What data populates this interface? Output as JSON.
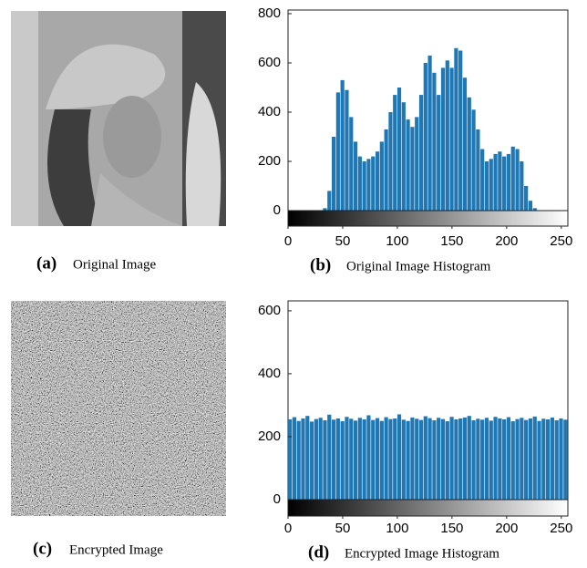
{
  "images": [
    {
      "label": "(a)",
      "caption": "Original Image"
    },
    {
      "label": "(c)",
      "caption": "Encrypted Image"
    }
  ],
  "chart_data": [
    {
      "type": "histogram",
      "label": "(b)",
      "title": "Original Image Histogram",
      "color": "#1f77b4",
      "bins": [
        0,
        4,
        8,
        12,
        16,
        20,
        24,
        28,
        32,
        36,
        40,
        44,
        48,
        52,
        56,
        60,
        64,
        68,
        72,
        76,
        80,
        84,
        88,
        92,
        96,
        100,
        104,
        108,
        112,
        116,
        120,
        124,
        128,
        132,
        136,
        140,
        144,
        148,
        152,
        156,
        160,
        164,
        168,
        172,
        176,
        180,
        184,
        188,
        192,
        196,
        200,
        204,
        208,
        212,
        216,
        220,
        224,
        228,
        232,
        236,
        240,
        244,
        248,
        252,
        256
      ],
      "values": [
        0,
        0,
        0,
        0,
        0,
        0,
        0,
        0,
        10,
        80,
        300,
        480,
        530,
        490,
        380,
        280,
        220,
        200,
        210,
        220,
        240,
        280,
        330,
        400,
        470,
        500,
        440,
        370,
        340,
        380,
        470,
        600,
        630,
        560,
        470,
        580,
        610,
        580,
        660,
        650,
        540,
        460,
        410,
        330,
        250,
        200,
        210,
        230,
        240,
        220,
        230,
        260,
        250,
        200,
        100,
        40,
        10,
        0,
        0,
        0,
        0,
        0,
        0,
        0
      ],
      "xlim": [
        0,
        256
      ],
      "xticks": [
        0,
        50,
        100,
        150,
        200,
        250
      ],
      "ylim": [
        0,
        800
      ],
      "yticks": [
        0,
        200,
        400,
        600,
        800
      ]
    },
    {
      "type": "histogram",
      "label": "(d)",
      "title": "Encrypted Image Histogram",
      "color": "#1f77b4",
      "bins": [
        0,
        4,
        8,
        12,
        16,
        20,
        24,
        28,
        32,
        36,
        40,
        44,
        48,
        52,
        56,
        60,
        64,
        68,
        72,
        76,
        80,
        84,
        88,
        92,
        96,
        100,
        104,
        108,
        112,
        116,
        120,
        124,
        128,
        132,
        136,
        140,
        144,
        148,
        152,
        156,
        160,
        164,
        168,
        172,
        176,
        180,
        184,
        188,
        192,
        196,
        200,
        204,
        208,
        212,
        216,
        220,
        224,
        228,
        232,
        236,
        240,
        244,
        248,
        252,
        256
      ],
      "values": [
        255,
        262,
        250,
        258,
        266,
        248,
        256,
        260,
        252,
        270,
        254,
        258,
        249,
        263,
        257,
        251,
        260,
        255,
        268,
        253,
        259,
        250,
        262,
        256,
        258,
        271,
        254,
        250,
        261,
        257,
        253,
        265,
        259,
        252,
        260,
        256,
        249,
        263,
        255,
        258,
        261,
        266,
        252,
        257,
        254,
        260,
        251,
        263,
        258,
        255,
        262,
        249,
        256,
        260,
        253,
        258,
        264,
        250,
        257,
        255,
        261,
        252,
        258,
        254
      ],
      "xlim": [
        0,
        256
      ],
      "xticks": [
        0,
        50,
        100,
        150,
        200,
        250
      ],
      "ylim": [
        0,
        620
      ],
      "yticks": [
        0,
        200,
        400,
        600
      ]
    }
  ]
}
